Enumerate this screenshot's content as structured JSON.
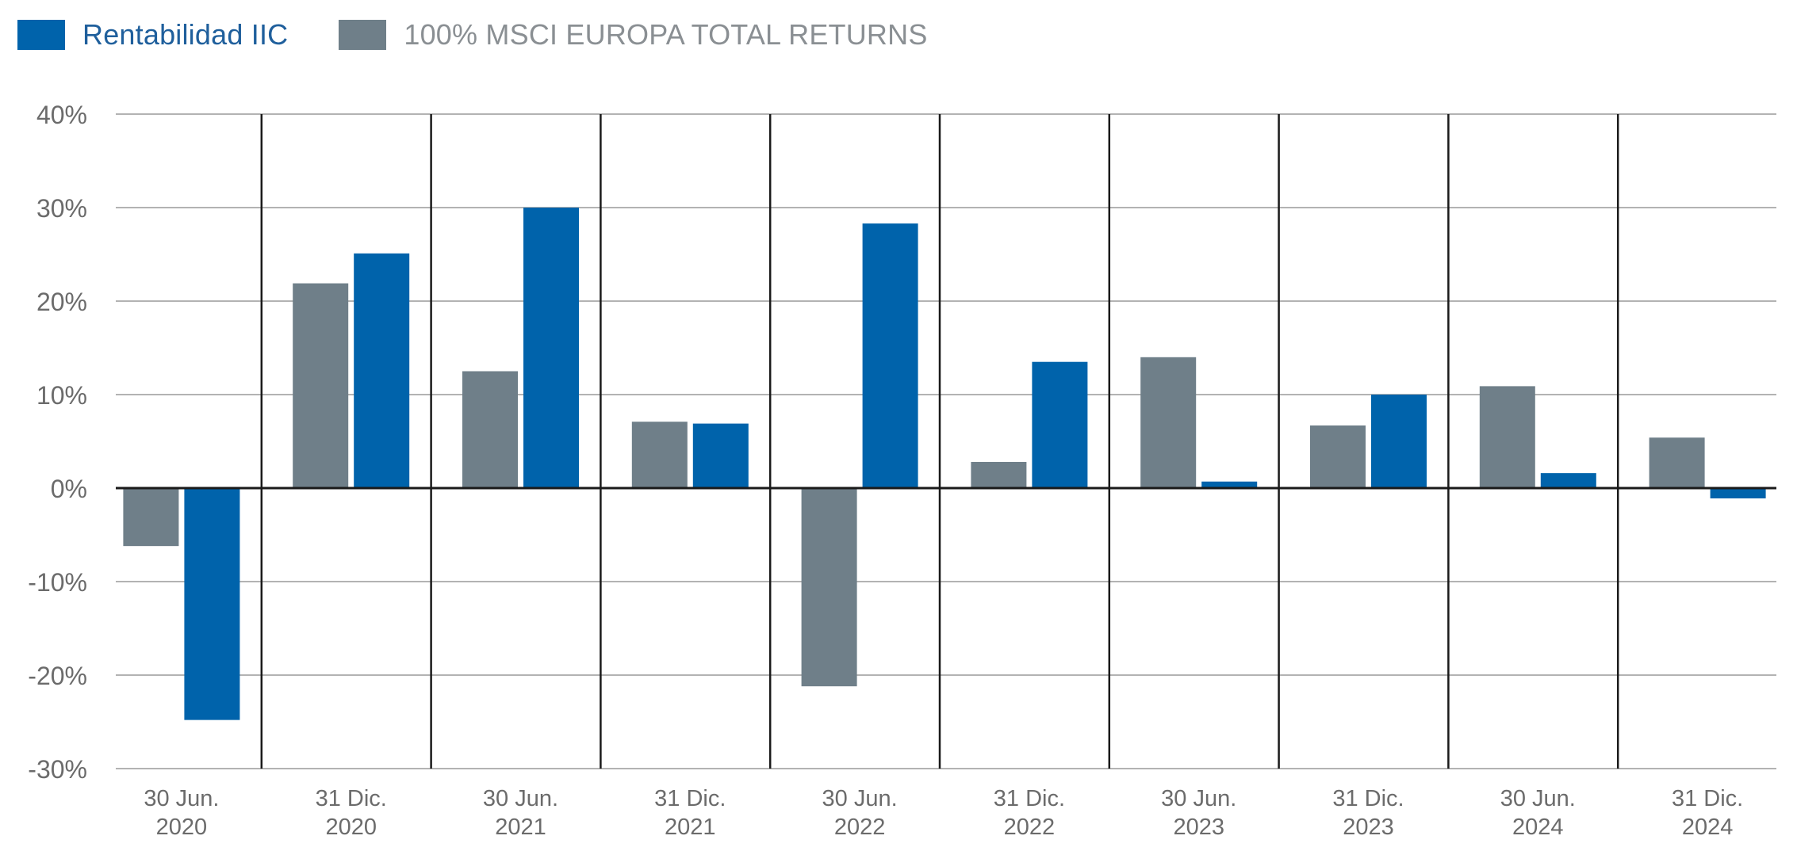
{
  "chart_data": {
    "type": "bar",
    "categories": [
      [
        "30 Jun.",
        "2020"
      ],
      [
        "31 Dic.",
        "2020"
      ],
      [
        "30 Jun.",
        "2021"
      ],
      [
        "31 Dic.",
        "2021"
      ],
      [
        "30 Jun.",
        "2022"
      ],
      [
        "31 Dic.",
        "2022"
      ],
      [
        "30 Jun.",
        "2023"
      ],
      [
        "31 Dic.",
        "2023"
      ],
      [
        "30 Jun.",
        "2024"
      ],
      [
        "31 Dic.",
        "2024"
      ]
    ],
    "series": [
      {
        "name": "100% MSCI EUROPA TOTAL RETURNS",
        "color": "#6f7f89",
        "values": [
          -6.2,
          21.9,
          12.5,
          7.1,
          -21.2,
          2.8,
          14.0,
          6.7,
          10.9,
          5.4
        ]
      },
      {
        "name": "Rentabilidad IIC",
        "color": "#0063ab",
        "values": [
          -24.8,
          25.1,
          30.0,
          6.9,
          28.3,
          13.5,
          0.7,
          10.0,
          1.6,
          -1.1
        ]
      }
    ],
    "legend_order": [
      1,
      0
    ],
    "legend_text_colors": [
      "#1f5f9c",
      "#8a8f93"
    ],
    "ylim": [
      -30,
      40
    ],
    "yticks": [
      "40%",
      "30%",
      "20%",
      "10%",
      "0%",
      "-10%",
      "-20%",
      "-30%"
    ],
    "ytick_values": [
      40,
      30,
      20,
      10,
      0,
      -10,
      -20,
      -30
    ],
    "grid": true,
    "legend_position": "top-left"
  }
}
